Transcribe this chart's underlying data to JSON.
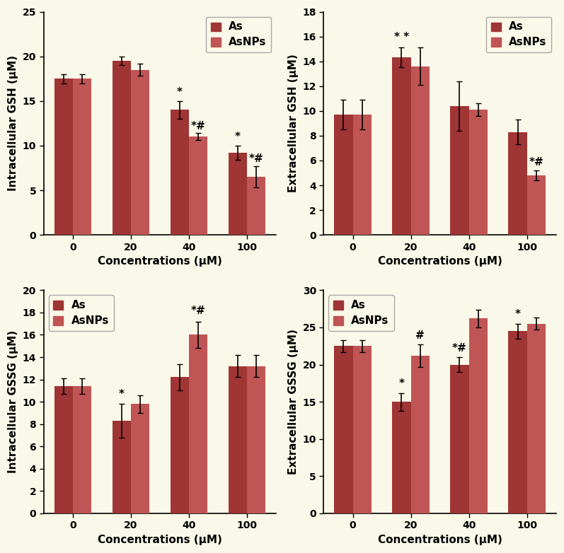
{
  "background_color": "#FAF8E8",
  "bar_color_as": "#A03535",
  "bar_color_asnps": "#C05555",
  "concentrations": [
    0,
    20,
    40,
    100
  ],
  "bar_width": 0.32,
  "panels": [
    {
      "ylabel": "Intracellular GSH (μM)",
      "xlabel": "Concentrations (μM)",
      "ylim": [
        0,
        25
      ],
      "yticks": [
        0,
        5,
        10,
        15,
        20,
        25
      ],
      "as_values": [
        17.5,
        19.5,
        14.0,
        9.2
      ],
      "asnps_values": [
        17.5,
        18.5,
        11.0,
        6.5
      ],
      "as_err": [
        0.5,
        0.5,
        1.0,
        0.8
      ],
      "asnps_err": [
        0.5,
        0.7,
        0.4,
        1.2
      ],
      "annotations_as": [
        "",
        "",
        "*",
        "*"
      ],
      "annotations_asnps": [
        "",
        "",
        "*#",
        "*#"
      ],
      "ann_as_xoff": [
        0,
        0,
        0,
        0
      ],
      "ann_asnps_xoff": [
        0,
        0,
        0,
        0
      ],
      "ann_as_yoff": [
        0.2,
        0.2,
        0.4,
        0.4
      ],
      "ann_asnps_yoff": [
        0.2,
        0.2,
        0.2,
        0.2
      ],
      "legend_loc": "upper right"
    },
    {
      "ylabel": "Extracellular GSH (μM)",
      "xlabel": "Concentrations (μM)",
      "ylim": [
        0,
        18
      ],
      "yticks": [
        0,
        2,
        4,
        6,
        8,
        10,
        12,
        14,
        16,
        18
      ],
      "as_values": [
        9.7,
        14.3,
        10.4,
        8.3
      ],
      "asnps_values": [
        9.7,
        13.6,
        10.1,
        4.8
      ],
      "as_err": [
        1.2,
        0.8,
        2.0,
        1.0
      ],
      "asnps_err": [
        1.2,
        1.5,
        0.5,
        0.4
      ],
      "annotations_as": [
        "",
        "* *",
        "",
        ""
      ],
      "annotations_asnps": [
        "",
        "",
        "",
        "*#"
      ],
      "ann_as_xoff": [
        0,
        0,
        0,
        0
      ],
      "ann_asnps_xoff": [
        0,
        0,
        0,
        0
      ],
      "ann_as_yoff": [
        0.2,
        0.4,
        0.2,
        0.4
      ],
      "ann_asnps_yoff": [
        0.2,
        0.2,
        0.2,
        0.2
      ],
      "legend_loc": "upper right"
    },
    {
      "ylabel": "Intracellular GSSG (μM)",
      "xlabel": "Concentrations (μM)",
      "ylim": [
        0,
        20
      ],
      "yticks": [
        0,
        2,
        4,
        6,
        8,
        10,
        12,
        14,
        16,
        18,
        20
      ],
      "as_values": [
        11.4,
        8.3,
        12.2,
        13.2
      ],
      "asnps_values": [
        11.4,
        9.8,
        16.0,
        13.2
      ],
      "as_err": [
        0.7,
        1.5,
        1.2,
        1.0
      ],
      "asnps_err": [
        0.7,
        0.8,
        1.2,
        1.0
      ],
      "annotations_as": [
        "",
        "*",
        "",
        ""
      ],
      "annotations_asnps": [
        "",
        "",
        "*#",
        ""
      ],
      "ann_as_xoff": [
        0,
        0,
        0,
        0
      ],
      "ann_asnps_xoff": [
        0,
        0,
        0,
        0
      ],
      "ann_as_yoff": [
        0.2,
        0.4,
        0.2,
        0.2
      ],
      "ann_asnps_yoff": [
        0.2,
        0.2,
        0.5,
        0.2
      ],
      "legend_loc": "upper left"
    },
    {
      "ylabel": "Extracellular GSSG (μM)",
      "xlabel": "Concentrations (μM)",
      "ylim": [
        0,
        30
      ],
      "yticks": [
        0,
        5,
        10,
        15,
        20,
        25,
        30
      ],
      "as_values": [
        22.5,
        15.0,
        20.0,
        24.5
      ],
      "asnps_values": [
        22.5,
        21.2,
        26.2,
        25.5
      ],
      "as_err": [
        0.8,
        1.2,
        1.0,
        1.0
      ],
      "asnps_err": [
        0.8,
        1.5,
        1.2,
        0.8
      ],
      "annotations_as": [
        "",
        "*",
        "*#",
        "*"
      ],
      "annotations_asnps": [
        "",
        "#",
        "",
        ""
      ],
      "ann_as_xoff": [
        0,
        0,
        0,
        0
      ],
      "ann_asnps_xoff": [
        0,
        0,
        0,
        0
      ],
      "ann_as_yoff": [
        0.2,
        0.5,
        0.5,
        0.5
      ],
      "ann_asnps_yoff": [
        0.2,
        0.5,
        0.2,
        0.2
      ],
      "legend_loc": "upper left"
    }
  ]
}
